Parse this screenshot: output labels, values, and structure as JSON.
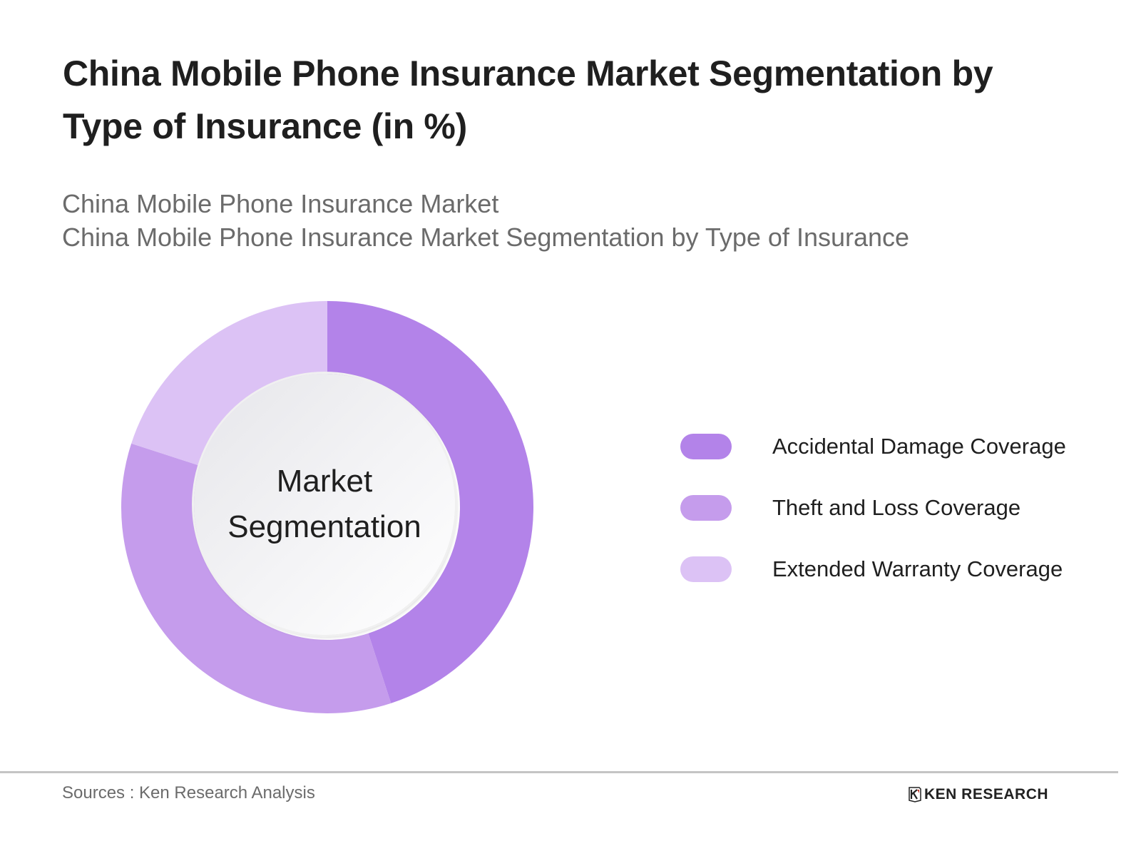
{
  "header": {
    "title": "China Mobile Phone Insurance Market Segmentation by Type of Insurance (in %)",
    "subtitle_line1": "China Mobile Phone Insurance Market",
    "subtitle_line2": "China Mobile Phone Insurance Market Segmentation by Type of Insurance"
  },
  "donut": {
    "center_line1": "Market",
    "center_line2": "Segmentation"
  },
  "legend": [
    {
      "label": "Accidental Damage Coverage",
      "color": "#b383e9"
    },
    {
      "label": "Theft and Loss Coverage",
      "color": "#c59cec"
    },
    {
      "label": "Extended Warranty Coverage",
      "color": "#dcc2f5"
    }
  ],
  "footer": {
    "source": "Sources : Ken Research Analysis",
    "logo_text": "KEN RESEARCH",
    "logo_icon": "ken-research-k-icon"
  },
  "chart_data": {
    "type": "pie",
    "subtype": "donut",
    "title": "China Mobile Phone Insurance Market Segmentation by Type of Insurance (in %)",
    "subtitle": "China Mobile Phone Insurance Market / China Mobile Phone Insurance Market Segmentation by Type of Insurance",
    "center_label": "Market Segmentation",
    "categories": [
      "Accidental Damage Coverage",
      "Theft and Loss Coverage",
      "Extended Warranty Coverage"
    ],
    "values": [
      45,
      35,
      20
    ],
    "colors": [
      "#b383e9",
      "#c59cec",
      "#dcc2f5"
    ],
    "start_angle": "12 o'clock, clockwise",
    "data_labels": false,
    "legend_position": "right",
    "source": "Sources : Ken Research Analysis"
  }
}
